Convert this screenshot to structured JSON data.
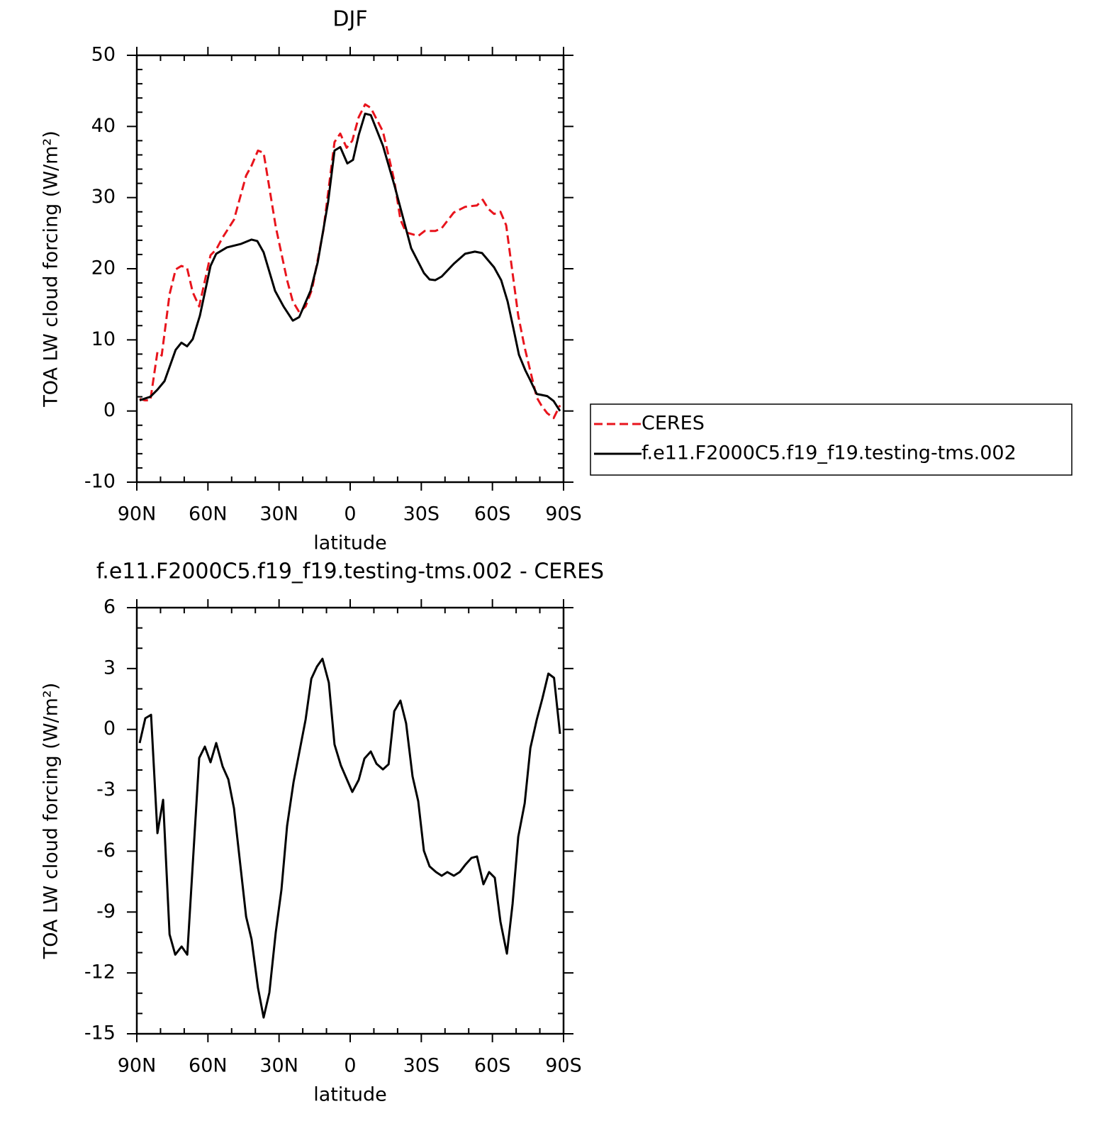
{
  "chart_data": [
    {
      "type": "line",
      "title": "DJF",
      "xlabel": "latitude",
      "ylabel": "TOA LW cloud forcing (W/m²)",
      "xlim": [
        90,
        -90
      ],
      "xticks": [
        {
          "value": 90,
          "label": "90N"
        },
        {
          "value": 60,
          "label": "60N"
        },
        {
          "value": 30,
          "label": "30N"
        },
        0,
        {
          "value": -30,
          "label": "30S"
        },
        {
          "value": -60,
          "label": "60S"
        },
        {
          "value": -90,
          "label": "90S"
        }
      ],
      "ylim": [
        -10,
        50
      ],
      "yticks": [
        -10,
        0,
        10,
        20,
        30,
        40,
        50
      ],
      "legend": true,
      "series": [
        {
          "name": "CERES",
          "color": "#e8141c",
          "dash": "dashed",
          "x": [
            88.8,
            86.7,
            84.3,
            81.3,
            79.5,
            76.2,
            73.6,
            71.2,
            68.8,
            66.4,
            63.7,
            58.9,
            56.5,
            53.8,
            49.0,
            43.9,
            41.6,
            38.9,
            36.5,
            31.4,
            26.6,
            24.2,
            21.5,
            18.8,
            16.1,
            11.3,
            6.6,
            4.2,
            1.5,
            -0.9,
            -3.6,
            -6.3,
            -8.7,
            -13.8,
            -18.6,
            -21.2,
            -23.6,
            -28.7,
            -31.4,
            -35.9,
            -38.6,
            -43.7,
            -48.5,
            -53.5,
            -55.9,
            -58.3,
            -60.7,
            -63.4,
            -65.8,
            -70.9,
            -73.6,
            -78.7,
            -80.8,
            -83.1,
            -85.8,
            -88.5
          ],
          "values": [
            1.7,
            1.5,
            1.5,
            8.3,
            7.8,
            16.4,
            19.9,
            20.4,
            20.1,
            16.7,
            14.7,
            21.9,
            22.7,
            24.4,
            26.9,
            33.1,
            34.5,
            36.6,
            36.3,
            25.9,
            18.4,
            15.4,
            13.9,
            14.7,
            17.1,
            25.4,
            37.8,
            39.0,
            37.0,
            38.0,
            41.3,
            43.1,
            42.6,
            39.3,
            32.4,
            26.9,
            25.1,
            24.6,
            25.3,
            25.3,
            25.7,
            27.9,
            28.7,
            28.9,
            29.7,
            28.4,
            27.7,
            28.0,
            26.1,
            13.4,
            8.9,
            1.9,
            0.7,
            -0.3,
            -1.0,
            0.8
          ]
        },
        {
          "name": "f.e11.F2000C5.f19_f19.testing-tms.002",
          "color": "#000000",
          "dash": "solid",
          "x": [
            88.8,
            84.3,
            81.3,
            78.3,
            73.6,
            71.2,
            68.8,
            66.4,
            63.4,
            58.9,
            56.5,
            52.0,
            46.0,
            41.6,
            39.2,
            36.5,
            31.7,
            28.1,
            24.2,
            21.5,
            16.7,
            13.7,
            9.3,
            6.6,
            4.2,
            1.2,
            -1.2,
            -3.6,
            -6.3,
            -8.7,
            -13.8,
            -18.6,
            -25.7,
            -31.1,
            -33.5,
            -35.9,
            -38.6,
            -43.7,
            -48.5,
            -52.6,
            -55.6,
            -60.7,
            -63.7,
            -66.4,
            -68.8,
            -71.2,
            -73.9,
            -76.0,
            -78.7,
            -83.1,
            -85.8,
            -88.5
          ],
          "values": [
            1.5,
            2.0,
            3.0,
            4.2,
            8.6,
            9.6,
            9.1,
            10.1,
            13.4,
            20.4,
            22.1,
            23.0,
            23.5,
            24.1,
            23.9,
            22.3,
            16.9,
            14.7,
            12.7,
            13.2,
            16.9,
            20.9,
            29.4,
            36.6,
            37.1,
            34.8,
            35.3,
            38.8,
            41.8,
            41.6,
            37.3,
            31.8,
            22.9,
            19.4,
            18.5,
            18.4,
            18.9,
            20.7,
            22.1,
            22.4,
            22.2,
            20.2,
            18.4,
            15.4,
            11.7,
            7.9,
            5.7,
            4.3,
            2.4,
            2.1,
            1.4,
            0.0
          ]
        }
      ]
    },
    {
      "type": "line",
      "title": "f.e11.F2000C5.f19_f19.testing-tms.002 - CERES",
      "xlabel": "latitude",
      "ylabel": "TOA LW cloud forcing (W/m²)",
      "xlim": [
        90,
        -90
      ],
      "xticks": [
        {
          "value": 90,
          "label": "90N"
        },
        {
          "value": 60,
          "label": "60N"
        },
        {
          "value": 30,
          "label": "30N"
        },
        0,
        {
          "value": -30,
          "label": "30S"
        },
        {
          "value": -60,
          "label": "60S"
        },
        {
          "value": -90,
          "label": "90S"
        }
      ],
      "ylim": [
        -15,
        6
      ],
      "yticks": [
        -15,
        -12,
        -9,
        -6,
        -3,
        0,
        3,
        6
      ],
      "legend": false,
      "series": [
        {
          "color": "#000000",
          "dash": "solid",
          "x": [
            88.8,
            86.4,
            84.0,
            81.3,
            78.9,
            76.2,
            73.8,
            71.1,
            68.7,
            63.7,
            61.3,
            58.9,
            56.5,
            53.8,
            51.4,
            49.0,
            43.9,
            41.6,
            38.9,
            36.5,
            34.1,
            31.4,
            29.0,
            26.6,
            23.9,
            18.8,
            16.4,
            14.0,
            11.7,
            9.0,
            6.6,
            3.9,
            -0.9,
            -3.6,
            -6.0,
            -8.7,
            -11.1,
            -13.8,
            -16.2,
            -18.6,
            -21.2,
            -23.6,
            -26.3,
            -28.7,
            -31.1,
            -33.5,
            -36.2,
            -38.6,
            -41.0,
            -43.7,
            -46.2,
            -48.5,
            -51.2,
            -53.5,
            -56.2,
            -58.6,
            -61.0,
            -63.4,
            -66.1,
            -68.5,
            -70.9,
            -73.6,
            -76.0,
            -78.7,
            -81.1,
            -83.6,
            -86.0,
            -88.5
          ],
          "values": [
            -0.67,
            0.55,
            0.72,
            -5.11,
            -3.47,
            -10.1,
            -11.1,
            -10.7,
            -11.1,
            -1.41,
            -0.85,
            -1.62,
            -0.67,
            -1.83,
            -2.46,
            -3.89,
            -9.23,
            -10.35,
            -12.73,
            -14.2,
            -12.97,
            -10.0,
            -7.91,
            -4.76,
            -2.6,
            0.48,
            2.5,
            3.1,
            3.48,
            2.3,
            -0.74,
            -1.79,
            -3.08,
            -2.49,
            -1.44,
            -1.09,
            -1.69,
            -1.97,
            -1.72,
            0.9,
            1.42,
            0.3,
            -2.32,
            -3.54,
            -5.98,
            -6.75,
            -7.03,
            -7.21,
            -7.03,
            -7.21,
            -7.03,
            -6.68,
            -6.33,
            -6.26,
            -7.63,
            -7.03,
            -7.31,
            -9.48,
            -11.05,
            -8.6,
            -5.29,
            -3.64,
            -0.92,
            0.48,
            1.53,
            2.75,
            2.54,
            -0.22
          ]
        }
      ]
    }
  ]
}
